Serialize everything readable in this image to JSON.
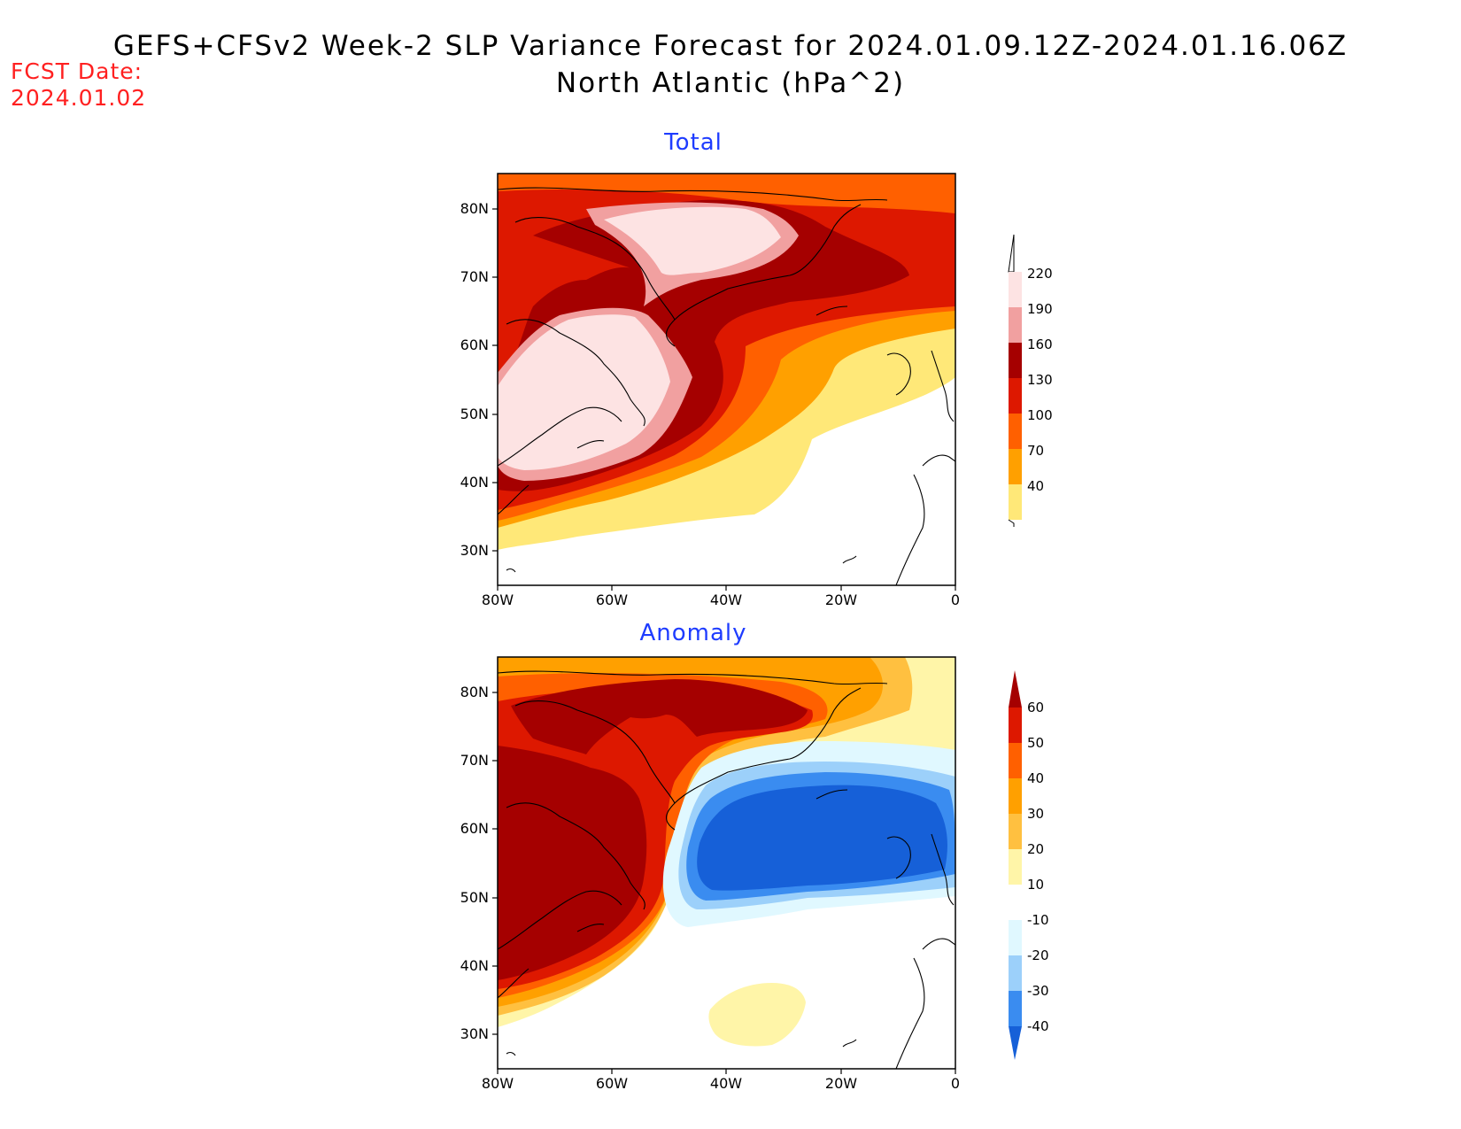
{
  "header": {
    "title_line1": "GEFS+CFSv2 Week-2 SLP Variance Forecast for 2024.01.09.12Z-2024.01.16.06Z",
    "title_line2": "North Atlantic (hPa^2)",
    "fcst_label": "FCST Date:",
    "fcst_date": "2024.01.02"
  },
  "axes": {
    "lat_labels": [
      "80N",
      "70N",
      "60N",
      "50N",
      "40N",
      "30N"
    ],
    "lon_labels": [
      "80W",
      "60W",
      "40W",
      "20W",
      "0"
    ]
  },
  "panels": [
    {
      "title": "Total",
      "colorbar": {
        "labels": [
          "220",
          "190",
          "160",
          "130",
          "100",
          "70",
          "40"
        ],
        "colors": [
          "#fde3e3",
          "#f1a0a0",
          "#a50000",
          "#dd1800",
          "#ff6000",
          "#ffa000",
          "#ffe878",
          "#ffffff"
        ]
      }
    },
    {
      "title": "Anomaly",
      "colorbar": {
        "labels": [
          "60",
          "50",
          "40",
          "30",
          "20",
          "10",
          "-10",
          "-20",
          "-30",
          "-40"
        ],
        "colors": [
          "#a50000",
          "#dd1800",
          "#ff6000",
          "#ffa000",
          "#ffc040",
          "#fff5a8",
          "#ffffff",
          "#e0f8ff",
          "#9cd0fa",
          "#3a8cf0",
          "#1660d8"
        ]
      }
    }
  ]
}
